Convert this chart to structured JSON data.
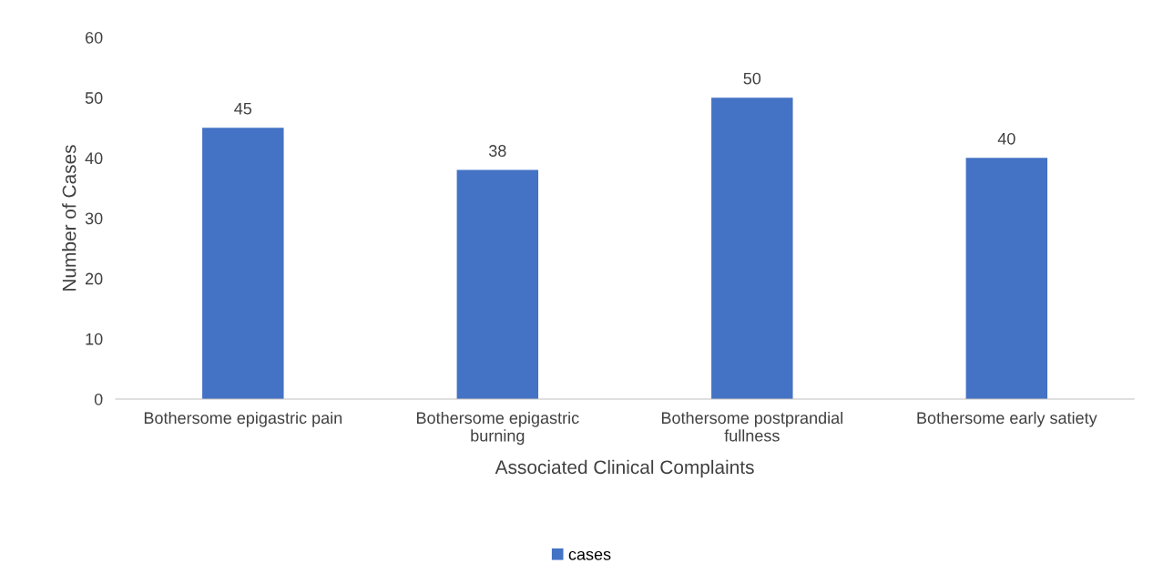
{
  "chart_data": {
    "type": "bar",
    "xlabel": "Associated Clinical Complaints",
    "ylabel": "Number of Cases",
    "categories": [
      "Bothersome epigastric pain",
      "Bothersome epigastric burning",
      "Bothersome postprandial fullness",
      "Bothersome early satiety"
    ],
    "series": [
      {
        "name": "cases",
        "color": "#4472c4",
        "values": [
          45,
          38,
          50,
          40
        ]
      }
    ],
    "ylim": [
      0,
      60
    ],
    "yticks": [
      0,
      10,
      20,
      30,
      40,
      50,
      60
    ],
    "data_labels": true,
    "grid": false,
    "legend": "bottom"
  }
}
